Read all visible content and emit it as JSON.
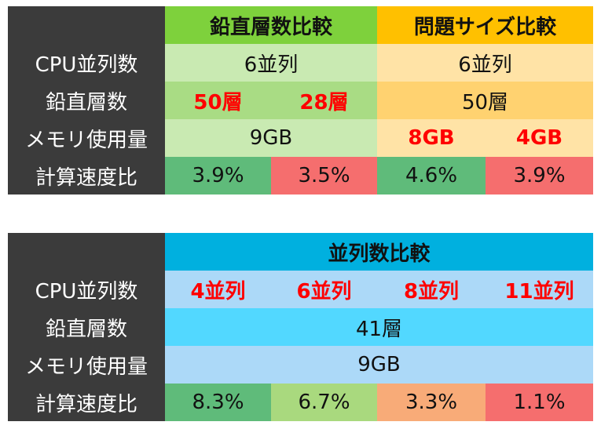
{
  "tables": [
    {
      "headers": [
        "鉛直層数比較",
        "問題サイズ比較"
      ],
      "rows": [
        {
          "label": "CPU並列数",
          "cells": [
            "6並列",
            "6並列"
          ]
        },
        {
          "label": "鉛直層数",
          "cells": [
            "50層",
            "28層",
            "50層"
          ]
        },
        {
          "label": "メモリ使用量",
          "cells": [
            "9GB",
            "8GB",
            "4GB"
          ]
        },
        {
          "label": "計算速度比",
          "cells": [
            "3.9%",
            "3.5%",
            "4.6%",
            "3.9%"
          ]
        }
      ]
    },
    {
      "headers": [
        "並列数比較"
      ],
      "rows": [
        {
          "label": "CPU並列数",
          "cells": [
            "4並列",
            "6並列",
            "8並列",
            "11並列"
          ]
        },
        {
          "label": "鉛直層数",
          "cells": [
            "41層"
          ]
        },
        {
          "label": "メモリ使用量",
          "cells": [
            "9GB"
          ]
        },
        {
          "label": "計算速度比",
          "cells": [
            "8.3%",
            "6.7%",
            "3.3%",
            "1.1%"
          ]
        }
      ]
    }
  ]
}
